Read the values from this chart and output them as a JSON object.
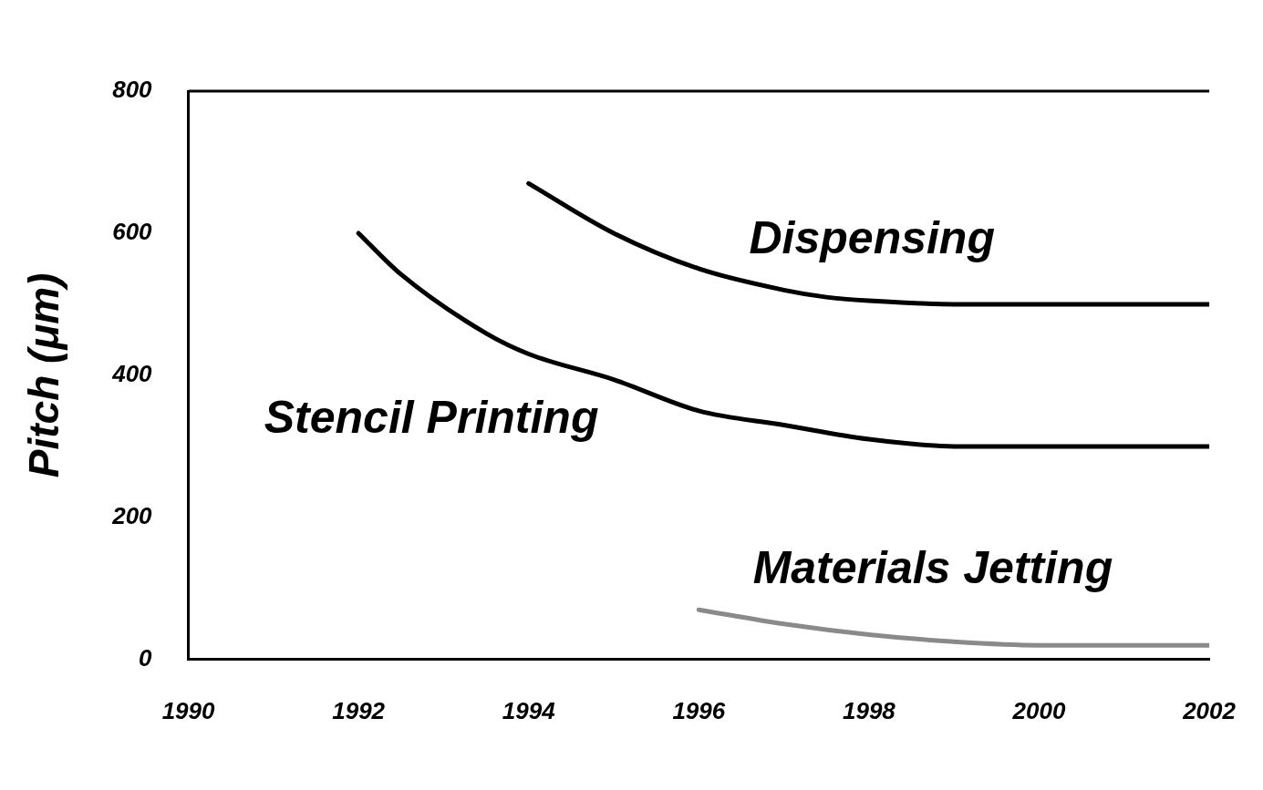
{
  "chart_data": {
    "type": "line",
    "ylabel": "Pitch (μm)",
    "xlim": [
      1990,
      2002
    ],
    "xticks": [
      1990,
      1992,
      1994,
      1996,
      1998,
      2000,
      2002
    ],
    "ylim": [
      0,
      800
    ],
    "yticks": [
      0,
      200,
      400,
      600,
      800
    ],
    "grid": false,
    "legend": false,
    "marker": "none",
    "line_style": "solid",
    "series": [
      {
        "name": "Dispensing",
        "color": "#000000",
        "x": [
          1994,
          1995,
          1996,
          1997,
          1997.5,
          1998,
          1999,
          2000,
          2002
        ],
        "values": [
          670,
          600,
          550,
          520,
          510,
          505,
          500,
          500,
          500
        ]
      },
      {
        "name": "Stencil Printing",
        "color": "#000000",
        "x": [
          1992,
          1992.5,
          1993.5,
          1994,
          1995,
          1996,
          1997,
          1998,
          1999,
          2002
        ],
        "values": [
          600,
          542,
          459,
          430,
          394,
          350,
          330,
          310,
          300,
          300
        ]
      },
      {
        "name": "Materials Jetting",
        "color": "#8a8a8a",
        "x": [
          1996,
          1997,
          1998,
          1999,
          2000,
          2002
        ],
        "values": [
          70,
          50,
          35,
          25,
          20,
          20
        ]
      }
    ]
  }
}
